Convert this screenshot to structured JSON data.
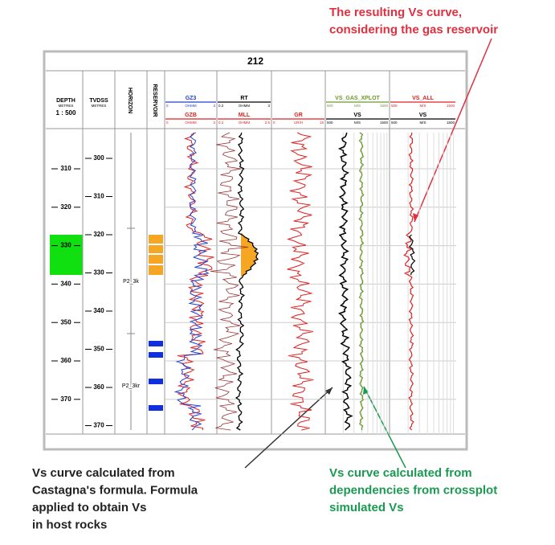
{
  "title": "212",
  "header": {
    "depth": {
      "name": "DEPTH",
      "unit": "METRES",
      "scale": "1 : 500"
    },
    "tvdss": {
      "name": "TVDSS",
      "unit": "METRES"
    },
    "horizon": "HORIZON",
    "reservoir": "RESERVOIR"
  },
  "tracks": [
    {
      "curves": [
        {
          "name": "GZ3",
          "unit": "OHMM",
          "min": "0",
          "max": "3",
          "color": "#1f3fd0"
        },
        {
          "name": "GZB",
          "unit": "OHMM",
          "min": "0",
          "max": "3",
          "color": "#e02020"
        }
      ]
    },
    {
      "curves": [
        {
          "name": "RT",
          "unit": "OHMM",
          "min": "0.2",
          "max": "3",
          "color": "#000000"
        },
        {
          "name": "MLL",
          "unit": "OHMM",
          "min": "0.2",
          "max": "2.5",
          "color": "#e02020"
        }
      ]
    },
    {
      "curves": [
        {
          "name": "GR",
          "unit": "UR/H",
          "min": "0",
          "max": "15",
          "color": "#e02020"
        }
      ]
    },
    {
      "curves": [
        {
          "name": "VS_GAS_XPLOT",
          "unit": "M/S",
          "min": "500",
          "max": "1500",
          "color": "#6a9a2a"
        },
        {
          "name": "VS",
          "unit": "M/S",
          "min": "500",
          "max": "1500",
          "color": "#000000"
        }
      ]
    },
    {
      "curves": [
        {
          "name": "VS_ALL",
          "unit": "M/S",
          "min": "500",
          "max": "1500",
          "color": "#e02020"
        },
        {
          "name": "VS",
          "unit": "M/S",
          "min": "500",
          "max": "1500",
          "color": "#000000"
        }
      ]
    }
  ],
  "depth_ticks": [
    310,
    320,
    330,
    340,
    350,
    360,
    370
  ],
  "tvdss_ticks": [
    300,
    310,
    320,
    330,
    340,
    350,
    360,
    370
  ],
  "horizons": [
    "P2_3k",
    "P2_3kr"
  ],
  "annotations": {
    "red": [
      "The resulting Vs curve,",
      "considering the gas reservoir"
    ],
    "black": [
      "Vs curve calculated from",
      "Castagna's formula. Formula",
      "applied to obtain Vs",
      "in host rocks"
    ],
    "green": [
      "Vs curve calculated from",
      "dependencies from crossplot",
      "simulated Vs"
    ]
  }
}
